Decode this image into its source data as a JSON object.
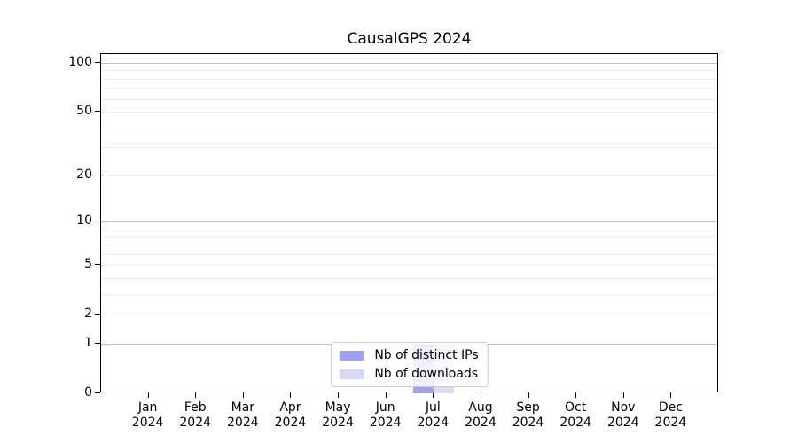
{
  "chart_data": {
    "type": "bar",
    "title": "CausalGPS 2024",
    "x_axis": {
      "categories": [
        "Jan",
        "Feb",
        "Mar",
        "Apr",
        "May",
        "Jun",
        "Jul",
        "Aug",
        "Sep",
        "Oct",
        "Nov",
        "Dec"
      ],
      "year": "2024"
    },
    "y_axis": {
      "scale": "log1p",
      "ticks": [
        0,
        1,
        2,
        5,
        10,
        20,
        50,
        100
      ],
      "major_grid": [
        1,
        10,
        100
      ],
      "minor_grid": [
        2,
        3,
        4,
        5,
        6,
        7,
        8,
        9,
        20,
        30,
        40,
        50,
        60,
        70,
        80,
        90
      ],
      "range": [
        0,
        113
      ]
    },
    "series": [
      {
        "name": "Nb of distinct IPs",
        "color": "#a2a2ec",
        "values": [
          0,
          0,
          0,
          0,
          0,
          0,
          1,
          0,
          0,
          0,
          0,
          0
        ]
      },
      {
        "name": "Nb of downloads",
        "color": "#d9d9f6",
        "values": [
          0,
          0,
          0,
          0,
          0,
          0,
          1,
          0,
          0,
          0,
          0,
          0
        ]
      }
    ],
    "legend": {
      "position": "bottom-center",
      "items": [
        "Nb of distinct IPs",
        "Nb of downloads"
      ]
    },
    "colors": {
      "major_grid": "#c2c2c2",
      "minor_grid": "#ebebeb",
      "axis": "#000000",
      "background": "#ffffff"
    }
  }
}
